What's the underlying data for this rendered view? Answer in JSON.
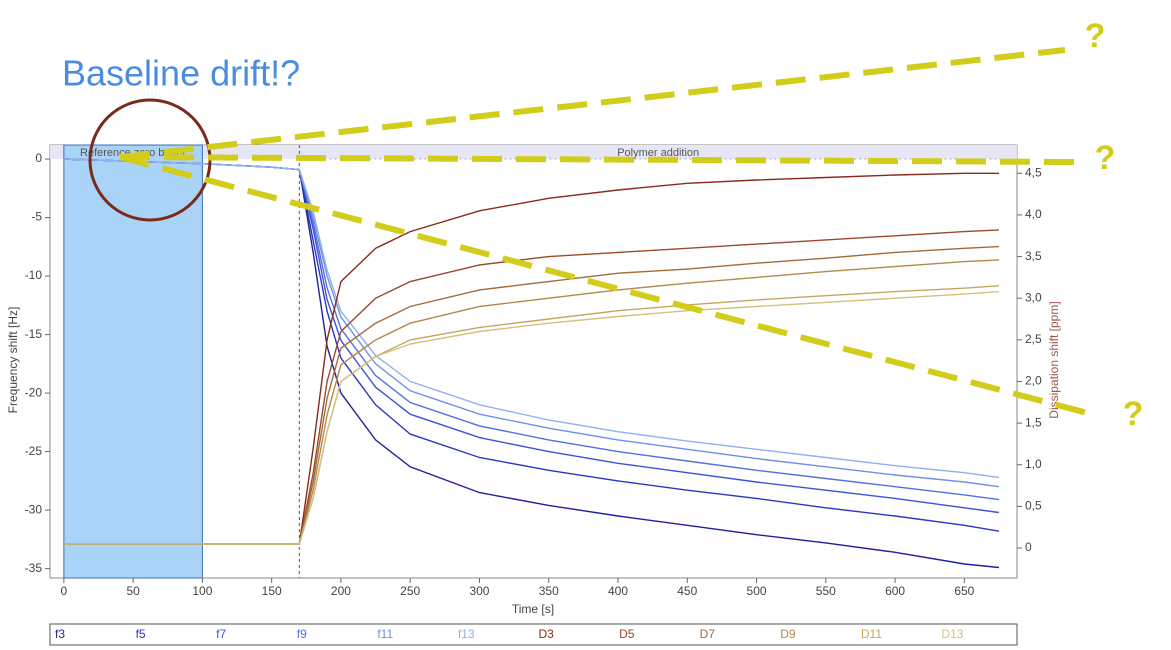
{
  "chart_data": {
    "type": "line",
    "title": "Baseline drift!?",
    "x_label": "Time [s]",
    "y_label": "Frequency shift [Hz]",
    "y2_label": "Dissipation shift [ppm]",
    "annotations": [
      "?",
      "?",
      "?"
    ],
    "regions": [
      {
        "label": "Reference zero buffer",
        "xstart": 0,
        "xend": 100
      },
      {
        "label": "Polymer addition",
        "x": 170
      }
    ],
    "x": [
      0,
      50,
      100,
      150,
      170,
      180,
      190,
      200,
      225,
      250,
      300,
      350,
      400,
      450,
      500,
      550,
      600,
      650,
      675
    ],
    "xlim": [
      -10,
      688
    ],
    "xticks": [
      0,
      50,
      100,
      150,
      200,
      250,
      300,
      350,
      400,
      450,
      500,
      550,
      600,
      650
    ],
    "ylim": [
      -35.8,
      1.2
    ],
    "yticks": [
      0,
      -5,
      -10,
      -15,
      -20,
      -25,
      -30,
      -35
    ],
    "y2lim": [
      -0.36,
      4.84
    ],
    "y2ticks": [
      0,
      {
        "value": 0.5,
        "label": "0,5"
      },
      {
        "value": 1,
        "label": "1,0"
      },
      {
        "value": 1.5,
        "label": "1,5"
      },
      {
        "value": 2,
        "label": "2,0"
      },
      {
        "value": 2.5,
        "label": "2,5"
      },
      {
        "value": 3,
        "label": "3,0"
      },
      {
        "value": 3.5,
        "label": "3,5"
      },
      {
        "value": 4,
        "label": "4,0"
      },
      {
        "value": 4.5,
        "label": "4,5"
      }
    ],
    "series": [
      {
        "name": "f3",
        "color": "#1f1fa0",
        "values": [
          0,
          -0.2,
          -0.4,
          -0.7,
          -0.9,
          -8,
          -16,
          -20,
          -24,
          -26.3,
          -28.5,
          -29.6,
          -30.5,
          -31.3,
          -32.1,
          -32.8,
          -33.6,
          -34.6,
          -34.9
        ]
      },
      {
        "name": "f5",
        "color": "#2f34c4",
        "values": [
          0,
          -0.2,
          -0.4,
          -0.7,
          -0.9,
          -7,
          -13,
          -17,
          -21,
          -23.5,
          -25.5,
          -26.6,
          -27.5,
          -28.3,
          -29,
          -29.8,
          -30.5,
          -31.3,
          -31.8
        ]
      },
      {
        "name": "f7",
        "color": "#3f52d4",
        "values": [
          0,
          -0.2,
          -0.4,
          -0.7,
          -0.9,
          -6,
          -12,
          -15.5,
          -19.5,
          -21.8,
          -23.8,
          -25,
          -26,
          -26.8,
          -27.6,
          -28.3,
          -29,
          -29.8,
          -30.2
        ]
      },
      {
        "name": "f9",
        "color": "#5270e0",
        "values": [
          0,
          -0.2,
          -0.4,
          -0.7,
          -0.9,
          -5.5,
          -11,
          -14.5,
          -18.5,
          -20.8,
          -22.8,
          -24,
          -25,
          -25.8,
          -26.6,
          -27.3,
          -28,
          -28.7,
          -29.1
        ]
      },
      {
        "name": "f11",
        "color": "#6f90e8",
        "values": [
          0,
          -0.2,
          -0.4,
          -0.7,
          -0.9,
          -5,
          -10,
          -13.5,
          -17.5,
          -19.8,
          -21.8,
          -23,
          -24,
          -24.8,
          -25.6,
          -26.3,
          -27,
          -27.6,
          -28
        ]
      },
      {
        "name": "f13",
        "color": "#90b0f0",
        "values": [
          0,
          -0.2,
          -0.4,
          -0.7,
          -0.9,
          -4.5,
          -9.5,
          -13,
          -16.8,
          -19,
          -21,
          -22.3,
          -23.3,
          -24.1,
          -24.8,
          -25.5,
          -26.2,
          -26.8,
          -27.2
        ]
      },
      {
        "name": "D3",
        "color": "#8b2a1a",
        "axis": "y2",
        "values": [
          0.05,
          0.05,
          0.05,
          0.05,
          0.05,
          1.2,
          2.5,
          3.2,
          3.6,
          3.8,
          4.05,
          4.2,
          4.3,
          4.38,
          4.42,
          4.45,
          4.48,
          4.5,
          4.5
        ]
      },
      {
        "name": "D5",
        "color": "#9a4a2a",
        "axis": "y2",
        "values": [
          0.05,
          0.05,
          0.05,
          0.05,
          0.05,
          0.9,
          2,
          2.6,
          3,
          3.2,
          3.4,
          3.5,
          3.55,
          3.6,
          3.65,
          3.7,
          3.75,
          3.8,
          3.82
        ]
      },
      {
        "name": "D7",
        "color": "#a56a3a",
        "axis": "y2",
        "values": [
          0.05,
          0.05,
          0.05,
          0.05,
          0.05,
          0.8,
          1.8,
          2.4,
          2.7,
          2.9,
          3.1,
          3.2,
          3.3,
          3.35,
          3.42,
          3.48,
          3.55,
          3.6,
          3.62
        ]
      },
      {
        "name": "D9",
        "color": "#b48a4a",
        "axis": "y2",
        "values": [
          0.05,
          0.05,
          0.05,
          0.05,
          0.05,
          0.7,
          1.6,
          2.2,
          2.5,
          2.7,
          2.9,
          3,
          3.1,
          3.18,
          3.25,
          3.32,
          3.38,
          3.44,
          3.46
        ]
      },
      {
        "name": "D11",
        "color": "#c4a660",
        "axis": "y2",
        "values": [
          0.05,
          0.05,
          0.05,
          0.05,
          0.05,
          0.6,
          1.4,
          2,
          2.3,
          2.5,
          2.65,
          2.75,
          2.85,
          2.92,
          2.98,
          3.03,
          3.08,
          3.12,
          3.15
        ]
      },
      {
        "name": "D13",
        "color": "#d4c080",
        "axis": "y2",
        "values": [
          0.05,
          0.05,
          0.05,
          0.05,
          0.05,
          0.6,
          1.4,
          2,
          2.3,
          2.45,
          2.6,
          2.7,
          2.78,
          2.85,
          2.9,
          2.95,
          3,
          3.05,
          3.08
        ]
      }
    ]
  }
}
